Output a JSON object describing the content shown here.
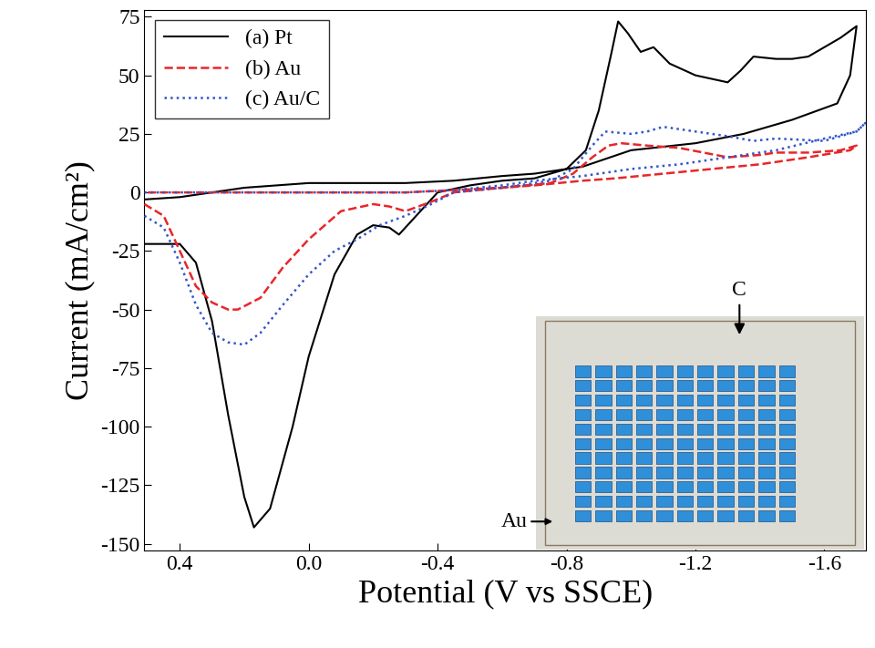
{
  "chart_data": {
    "type": "line",
    "xlabel": "Potential (V vs SSCE)",
    "ylabel": "Current (mA/cm²)",
    "xlim": [
      0.51,
      -1.73
    ],
    "ylim": [
      -153,
      78
    ],
    "xticks": [
      0.4,
      0.0,
      -0.4,
      -0.8,
      -1.2,
      -1.6
    ],
    "yticks": [
      -150,
      -125,
      -100,
      -75,
      -50,
      -25,
      0,
      25,
      50,
      75
    ],
    "legend": "upper left",
    "annotations": [
      "C",
      "Au"
    ],
    "series": [
      {
        "name": "(a) Pt",
        "color": "#000000",
        "line_style": "solid",
        "x": [
          0.51,
          0.4,
          0.35,
          0.3,
          0.25,
          0.2,
          0.17,
          0.12,
          0.05,
          0.0,
          -0.08,
          -0.15,
          -0.2,
          -0.25,
          -0.28,
          -0.32,
          -0.4,
          -0.5,
          -0.6,
          -0.7,
          -0.8,
          -0.86,
          -0.9,
          -0.94,
          -0.96,
          -0.99,
          -1.03,
          -1.07,
          -1.12,
          -1.2,
          -1.3,
          -1.34,
          -1.38,
          -1.45,
          -1.5,
          -1.55,
          -1.6,
          -1.65,
          -1.7,
          -1.68,
          -1.64,
          -1.5,
          -1.35,
          -1.2,
          -1.0,
          -0.85,
          -0.7,
          -0.6,
          -0.45,
          -0.3,
          -0.15,
          0.0,
          0.1,
          0.2,
          0.3,
          0.4,
          0.51
        ],
        "values": [
          -22,
          -22,
          -30,
          -55,
          -95,
          -130,
          -143,
          -135,
          -100,
          -70,
          -35,
          -18,
          -14,
          -15,
          -18,
          -12,
          0,
          3,
          5,
          6,
          10,
          18,
          35,
          60,
          73,
          68,
          60,
          62,
          55,
          50,
          47,
          52,
          58,
          57,
          57,
          58,
          62,
          66,
          71,
          50,
          38,
          31,
          25,
          21,
          18,
          11,
          8,
          7,
          5,
          4,
          4,
          4,
          3,
          2,
          0,
          -2,
          -3
        ]
      },
      {
        "name": "(b) Au",
        "color": "#e8262a",
        "line_style": "dashed",
        "x": [
          0.51,
          0.45,
          0.4,
          0.35,
          0.3,
          0.25,
          0.22,
          0.15,
          0.08,
          0.0,
          -0.1,
          -0.2,
          -0.25,
          -0.3,
          -0.38,
          -0.45,
          -0.6,
          -0.75,
          -0.82,
          -0.88,
          -0.93,
          -0.97,
          -1.05,
          -1.15,
          -1.3,
          -1.4,
          -1.45,
          -1.55,
          -1.65,
          -1.7,
          -1.68,
          -1.55,
          -1.4,
          -1.25,
          -1.1,
          -0.95,
          -0.85,
          -0.7,
          -0.6,
          -0.45,
          -0.3,
          0.0,
          0.3,
          0.51
        ],
        "values": [
          -5,
          -10,
          -25,
          -40,
          -47,
          -50,
          -50,
          -45,
          -32,
          -20,
          -8,
          -5,
          -6,
          -8,
          -4,
          0,
          2,
          4,
          8,
          15,
          20,
          21,
          20,
          19,
          15,
          16,
          17,
          17,
          18,
          20,
          18,
          15,
          12,
          10,
          8,
          6,
          5,
          3,
          2,
          1,
          0,
          0,
          0,
          0
        ]
      },
      {
        "name": "(c) Au/C",
        "color": "#3355cc",
        "line_style": "dotted",
        "x": [
          0.51,
          0.45,
          0.4,
          0.35,
          0.3,
          0.25,
          0.2,
          0.15,
          0.08,
          0.0,
          -0.08,
          -0.15,
          -0.22,
          -0.3,
          -0.38,
          -0.45,
          -0.6,
          -0.75,
          -0.82,
          -0.88,
          -0.92,
          -1.0,
          -1.05,
          -1.1,
          -1.2,
          -1.3,
          -1.38,
          -1.45,
          -1.6,
          -1.7,
          -1.73,
          -1.7,
          -1.6,
          -1.45,
          -1.3,
          -1.15,
          -1.0,
          -0.85,
          -0.7,
          -0.6,
          -0.45,
          -0.3,
          0.0,
          0.3,
          0.51
        ],
        "values": [
          -10,
          -15,
          -30,
          -48,
          -60,
          -64,
          -65,
          -60,
          -48,
          -35,
          -25,
          -20,
          -14,
          -10,
          -5,
          0,
          2,
          5,
          10,
          20,
          26,
          25,
          26,
          28,
          26,
          24,
          22,
          23,
          22,
          26,
          30,
          26,
          23,
          18,
          15,
          12,
          10,
          7,
          5,
          3,
          1,
          0,
          0,
          0,
          0
        ]
      }
    ]
  }
}
